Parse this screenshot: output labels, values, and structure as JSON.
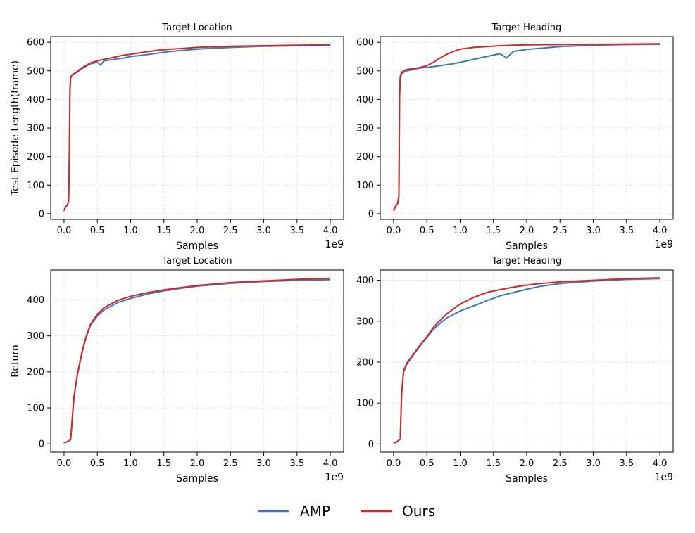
{
  "colors": {
    "AMP": "#3a7ab5",
    "Ours": "#d62728"
  },
  "legend": {
    "items": [
      {
        "name": "AMP",
        "color": "#3a7ab5"
      },
      {
        "name": "Ours",
        "color": "#d62728"
      }
    ]
  },
  "chart_data": [
    {
      "type": "line",
      "title": "Target Location",
      "xlabel": "Samples",
      "ylabel": "Test Episode Length(frame)",
      "x_offset_label": "1e9",
      "xlim": [
        -0.2,
        4.2
      ],
      "ylim": [
        -20,
        620
      ],
      "xticks": [
        0.0,
        0.5,
        1.0,
        1.5,
        2.0,
        2.5,
        3.0,
        3.5,
        4.0
      ],
      "xtick_labels": [
        "0.0",
        "0.5",
        "1.0",
        "1.5",
        "2.0",
        "2.5",
        "3.0",
        "3.5",
        "4.0"
      ],
      "yticks": [
        0,
        100,
        200,
        300,
        400,
        500,
        600
      ],
      "ytick_labels": [
        "0",
        "100",
        "200",
        "300",
        "400",
        "500",
        "600"
      ],
      "series": [
        {
          "name": "AMP",
          "x": [
            0,
            0.02,
            0.05,
            0.07,
            0.08,
            0.09,
            0.1,
            0.12,
            0.15,
            0.2,
            0.25,
            0.3,
            0.4,
            0.5,
            0.55,
            0.6,
            0.7,
            0.8,
            0.9,
            1.0,
            1.2,
            1.4,
            1.6,
            1.8,
            2.0,
            2.5,
            3.0,
            3.5,
            4.0
          ],
          "y": [
            10,
            22,
            30,
            45,
            200,
            430,
            475,
            485,
            490,
            495,
            505,
            512,
            525,
            530,
            520,
            535,
            538,
            542,
            545,
            550,
            555,
            562,
            568,
            572,
            576,
            582,
            586,
            588,
            590
          ]
        },
        {
          "name": "Ours",
          "x": [
            0,
            0.02,
            0.05,
            0.07,
            0.08,
            0.09,
            0.1,
            0.12,
            0.15,
            0.2,
            0.25,
            0.3,
            0.4,
            0.5,
            0.6,
            0.7,
            0.8,
            0.9,
            1.0,
            1.2,
            1.4,
            1.6,
            1.8,
            2.0,
            2.5,
            3.0,
            3.5,
            4.0
          ],
          "y": [
            10,
            22,
            30,
            45,
            220,
            440,
            478,
            486,
            490,
            498,
            508,
            515,
            528,
            535,
            540,
            545,
            550,
            555,
            558,
            565,
            572,
            576,
            579,
            582,
            586,
            588,
            590,
            591
          ]
        }
      ]
    },
    {
      "type": "line",
      "title": "Target Heading",
      "xlabel": "Samples",
      "ylabel": "",
      "x_offset_label": "1e9",
      "xlim": [
        -0.2,
        4.2
      ],
      "ylim": [
        -20,
        620
      ],
      "xticks": [
        0.0,
        0.5,
        1.0,
        1.5,
        2.0,
        2.5,
        3.0,
        3.5,
        4.0
      ],
      "xtick_labels": [
        "0.0",
        "0.5",
        "1.0",
        "1.5",
        "2.0",
        "2.5",
        "3.0",
        "3.5",
        "4.0"
      ],
      "yticks": [
        0,
        100,
        200,
        300,
        400,
        500,
        600
      ],
      "ytick_labels": [
        "0",
        "100",
        "200",
        "300",
        "400",
        "500",
        "600"
      ],
      "series": [
        {
          "name": "AMP",
          "x": [
            0,
            0.03,
            0.06,
            0.08,
            0.09,
            0.1,
            0.12,
            0.15,
            0.2,
            0.3,
            0.4,
            0.5,
            0.7,
            0.9,
            1.0,
            1.2,
            1.4,
            1.6,
            1.7,
            1.8,
            2.0,
            2.5,
            3.0,
            3.5,
            4.0
          ],
          "y": [
            10,
            25,
            35,
            60,
            400,
            470,
            490,
            495,
            500,
            505,
            510,
            512,
            518,
            525,
            530,
            540,
            550,
            560,
            545,
            568,
            575,
            585,
            590,
            592,
            593
          ]
        },
        {
          "name": "Ours",
          "x": [
            0,
            0.03,
            0.06,
            0.08,
            0.09,
            0.1,
            0.12,
            0.15,
            0.2,
            0.3,
            0.4,
            0.5,
            0.6,
            0.7,
            0.8,
            0.9,
            1.0,
            1.2,
            1.4,
            1.6,
            1.8,
            2.0,
            2.5,
            3.0,
            3.5,
            4.0
          ],
          "y": [
            10,
            25,
            35,
            60,
            420,
            480,
            495,
            500,
            505,
            508,
            512,
            518,
            530,
            545,
            558,
            568,
            576,
            582,
            585,
            588,
            590,
            591,
            592,
            593,
            594,
            595
          ]
        }
      ]
    },
    {
      "type": "line",
      "title": "Target Location",
      "xlabel": "Samples",
      "ylabel": "Return",
      "x_offset_label": "1e9",
      "xlim": [
        -0.2,
        4.2
      ],
      "ylim": [
        -23,
        483
      ],
      "xticks": [
        0.0,
        0.5,
        1.0,
        1.5,
        2.0,
        2.5,
        3.0,
        3.5,
        4.0
      ],
      "xtick_labels": [
        "0.0",
        "0.5",
        "1.0",
        "1.5",
        "2.0",
        "2.5",
        "3.0",
        "3.5",
        "4.0"
      ],
      "yticks": [
        0,
        100,
        200,
        300,
        400
      ],
      "ytick_labels": [
        "0",
        "100",
        "200",
        "300",
        "400"
      ],
      "series": [
        {
          "name": "AMP",
          "x": [
            0,
            0.05,
            0.1,
            0.12,
            0.15,
            0.2,
            0.25,
            0.3,
            0.35,
            0.4,
            0.5,
            0.6,
            0.8,
            1.0,
            1.25,
            1.5,
            1.75,
            2.0,
            2.5,
            3.0,
            3.5,
            4.0
          ],
          "y": [
            3,
            6,
            12,
            60,
            130,
            190,
            235,
            275,
            305,
            330,
            355,
            372,
            392,
            404,
            416,
            425,
            432,
            438,
            446,
            451,
            454,
            456
          ]
        },
        {
          "name": "Ours",
          "x": [
            0,
            0.05,
            0.1,
            0.12,
            0.15,
            0.2,
            0.25,
            0.3,
            0.35,
            0.4,
            0.5,
            0.6,
            0.8,
            1.0,
            1.25,
            1.5,
            1.75,
            2.0,
            2.5,
            3.0,
            3.5,
            4.0
          ],
          "y": [
            3,
            6,
            12,
            62,
            132,
            192,
            238,
            278,
            308,
            333,
            360,
            378,
            398,
            410,
            420,
            428,
            434,
            440,
            448,
            453,
            457,
            460
          ]
        }
      ]
    },
    {
      "type": "line",
      "title": "Target Heading",
      "xlabel": "Samples",
      "ylabel": "",
      "x_offset_label": "1e9",
      "xlim": [
        -0.2,
        4.2
      ],
      "ylim": [
        -20,
        425
      ],
      "xticks": [
        0.0,
        0.5,
        1.0,
        1.5,
        2.0,
        2.5,
        3.0,
        3.5,
        4.0
      ],
      "xtick_labels": [
        "0.0",
        "0.5",
        "1.0",
        "1.5",
        "2.0",
        "2.5",
        "3.0",
        "3.5",
        "4.0"
      ],
      "yticks": [
        0,
        100,
        200,
        300,
        400
      ],
      "ytick_labels": [
        "0",
        "100",
        "200",
        "300",
        "400"
      ],
      "series": [
        {
          "name": "AMP",
          "x": [
            0,
            0.05,
            0.1,
            0.12,
            0.15,
            0.2,
            0.3,
            0.4,
            0.5,
            0.6,
            0.7,
            0.8,
            1.0,
            1.2,
            1.4,
            1.6,
            1.8,
            2.0,
            2.2,
            2.5,
            3.0,
            3.5,
            4.0
          ],
          "y": [
            2,
            5,
            12,
            120,
            175,
            195,
            218,
            240,
            260,
            280,
            295,
            308,
            325,
            337,
            350,
            362,
            370,
            378,
            385,
            392,
            398,
            402,
            404
          ]
        },
        {
          "name": "Ours",
          "x": [
            0,
            0.05,
            0.1,
            0.12,
            0.15,
            0.2,
            0.3,
            0.4,
            0.5,
            0.6,
            0.7,
            0.8,
            1.0,
            1.2,
            1.4,
            1.6,
            1.8,
            2.0,
            2.2,
            2.5,
            3.0,
            3.5,
            4.0
          ],
          "y": [
            2,
            5,
            12,
            122,
            178,
            198,
            220,
            242,
            262,
            285,
            302,
            318,
            342,
            358,
            370,
            377,
            383,
            388,
            392,
            396,
            400,
            404,
            406
          ]
        }
      ]
    }
  ]
}
